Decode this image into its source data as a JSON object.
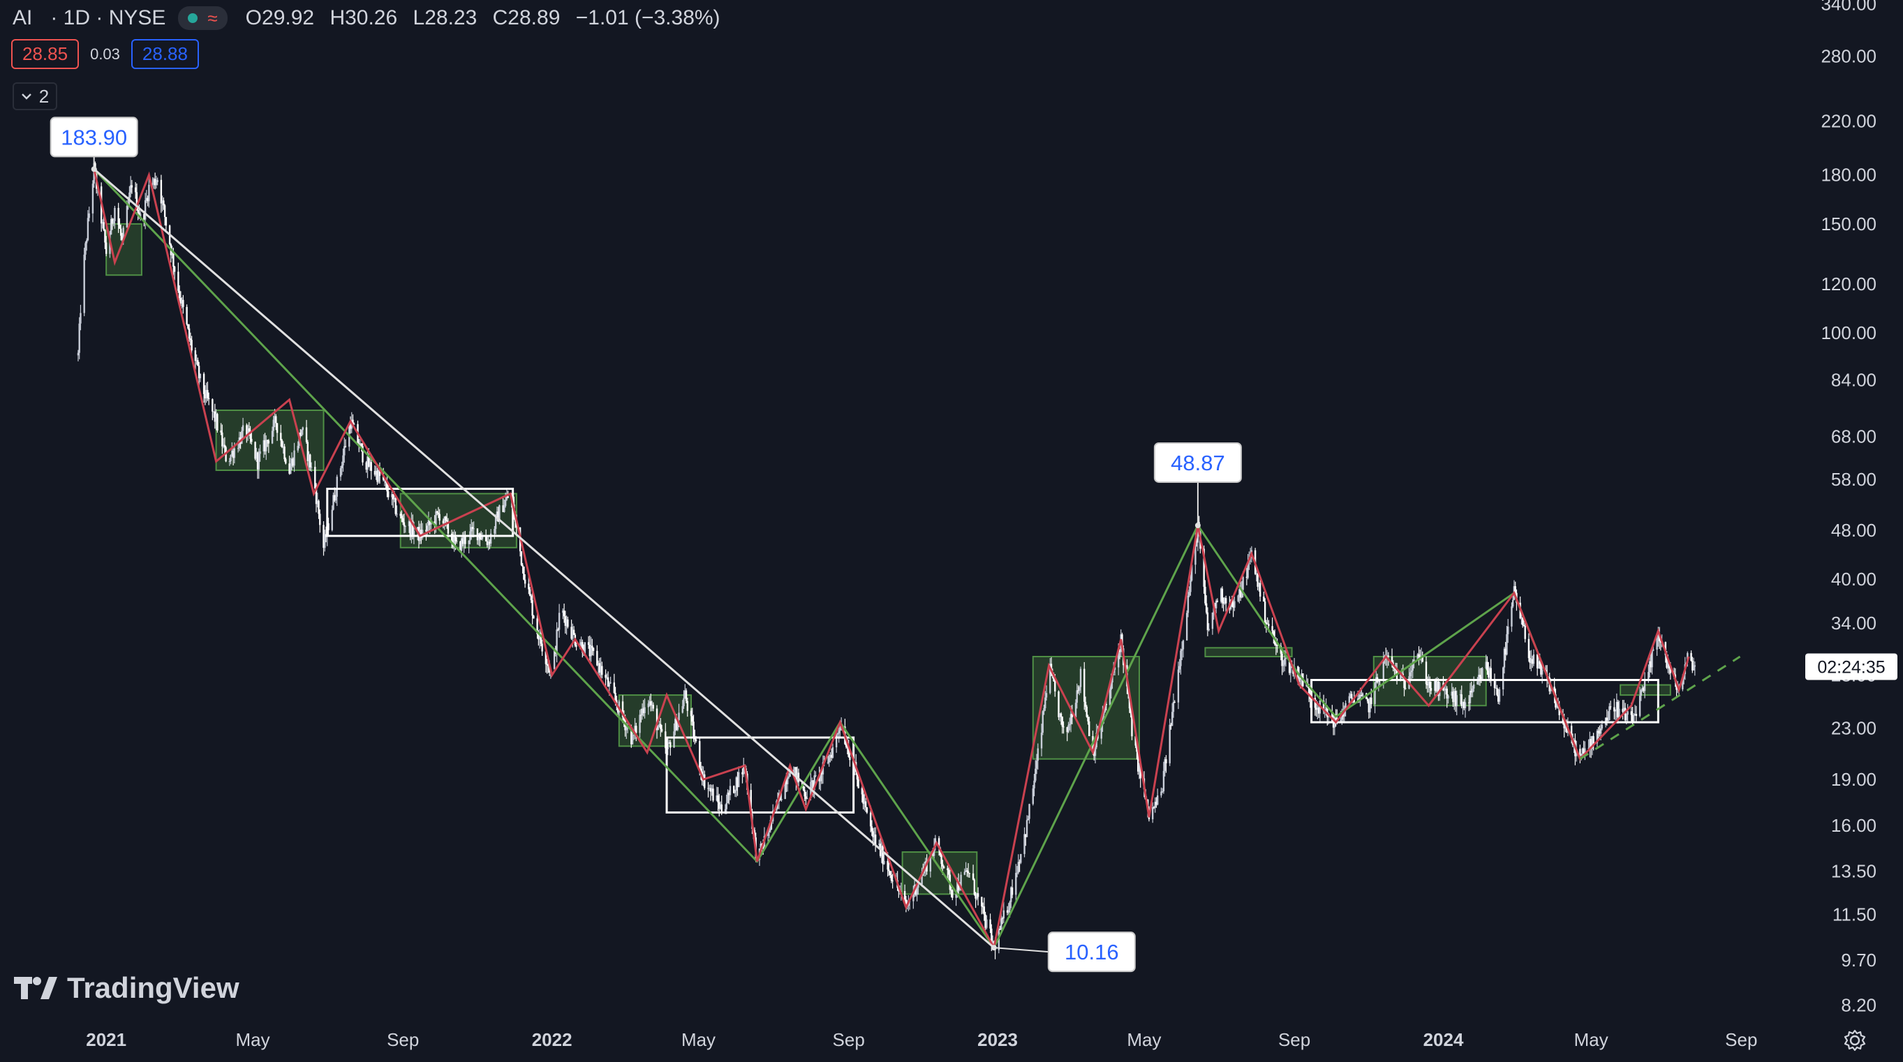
{
  "header": {
    "symbol": "AI",
    "interval_exchange": "· 1D · NYSE",
    "open": "O29.92",
    "high": "H30.26",
    "low": "L28.23",
    "close": "C28.89",
    "change": "−1.01 (−3.38%)",
    "status_icons": [
      "market-open-dot-icon",
      "wave-icon"
    ]
  },
  "quote": {
    "bid": "28.85",
    "spread": "0.03",
    "ask": "28.88"
  },
  "indicators_toggle": {
    "count": "2"
  },
  "branding": {
    "logo_text": "TradingView"
  },
  "chart_data": {
    "type": "candlestick",
    "y_scale": "log",
    "ylim": [
      7.6,
      345
    ],
    "y_ticks": [
      "340.00",
      "280.00",
      "220.00",
      "180.00",
      "150.00",
      "120.00",
      "100.00",
      "84.00",
      "68.00",
      "58.00",
      "48.00",
      "40.00",
      "34.00",
      "28.00",
      "23.00",
      "19.00",
      "16.00",
      "13.50",
      "11.50",
      "9.70",
      "8.20"
    ],
    "x_ticks": [
      "2021",
      "May",
      "Sep",
      "2022",
      "May",
      "Sep",
      "2023",
      "May",
      "Sep",
      "2024",
      "May",
      "Sep"
    ],
    "x_tick_dates": [
      "2021-01-01",
      "2021-05-01",
      "2021-09-01",
      "2022-01-01",
      "2022-05-01",
      "2022-09-01",
      "2023-01-01",
      "2023-05-01",
      "2023-09-01",
      "2024-01-01",
      "2024-05-01",
      "2024-09-01"
    ],
    "x_range": [
      "2020-10-06",
      "2024-10-20"
    ],
    "countdown_label": "02:24:35",
    "price_path": [
      [
        "2020-12-09",
        92
      ],
      [
        "2020-12-12",
        120
      ],
      [
        "2020-12-17",
        150
      ],
      [
        "2020-12-22",
        183.9
      ],
      [
        "2021-01-01",
        135
      ],
      [
        "2021-01-08",
        160
      ],
      [
        "2021-01-14",
        140
      ],
      [
        "2021-01-22",
        175
      ],
      [
        "2021-01-30",
        150
      ],
      [
        "2021-02-05",
        172
      ],
      [
        "2021-02-12",
        178
      ],
      [
        "2021-02-22",
        140
      ],
      [
        "2021-03-01",
        118
      ],
      [
        "2021-03-10",
        98
      ],
      [
        "2021-03-20",
        82
      ],
      [
        "2021-04-01",
        72
      ],
      [
        "2021-04-10",
        62
      ],
      [
        "2021-04-25",
        70
      ],
      [
        "2021-05-05",
        62
      ],
      [
        "2021-05-20",
        72
      ],
      [
        "2021-05-31",
        60
      ],
      [
        "2021-06-10",
        70
      ],
      [
        "2021-06-20",
        58
      ],
      [
        "2021-06-28",
        45
      ],
      [
        "2021-07-08",
        56
      ],
      [
        "2021-07-20",
        72
      ],
      [
        "2021-08-01",
        62
      ],
      [
        "2021-08-15",
        58
      ],
      [
        "2021-08-30",
        50
      ],
      [
        "2021-09-15",
        47
      ],
      [
        "2021-10-01",
        51
      ],
      [
        "2021-10-15",
        45
      ],
      [
        "2021-10-30",
        48
      ],
      [
        "2021-11-10",
        46
      ],
      [
        "2021-11-20",
        52
      ],
      [
        "2021-11-28",
        55
      ],
      [
        "2021-12-08",
        42
      ],
      [
        "2021-12-20",
        33
      ],
      [
        "2022-01-01",
        28
      ],
      [
        "2022-01-08",
        36
      ],
      [
        "2022-01-20",
        32
      ],
      [
        "2022-02-05",
        30
      ],
      [
        "2022-02-20",
        26
      ],
      [
        "2022-03-08",
        22
      ],
      [
        "2022-03-20",
        26
      ],
      [
        "2022-04-05",
        21
      ],
      [
        "2022-04-20",
        26
      ],
      [
        "2022-05-05",
        19
      ],
      [
        "2022-05-20",
        17
      ],
      [
        "2022-06-08",
        20
      ],
      [
        "2022-06-18",
        14.0
      ],
      [
        "2022-07-01",
        16.5
      ],
      [
        "2022-07-15",
        20
      ],
      [
        "2022-07-28",
        18
      ],
      [
        "2022-08-10",
        19.5
      ],
      [
        "2022-08-20",
        21.5
      ],
      [
        "2022-08-25",
        23.5
      ],
      [
        "2022-09-05",
        20
      ],
      [
        "2022-09-20",
        15.5
      ],
      [
        "2022-10-05",
        13.5
      ],
      [
        "2022-10-18",
        11.8
      ],
      [
        "2022-11-01",
        13.5
      ],
      [
        "2022-11-12",
        15
      ],
      [
        "2022-11-25",
        12.5
      ],
      [
        "2022-12-08",
        13.5
      ],
      [
        "2022-12-20",
        11.5
      ],
      [
        "2022-12-29",
        10.16
      ],
      [
        "2023-01-10",
        12
      ],
      [
        "2023-01-25",
        16
      ],
      [
        "2023-02-05",
        22
      ],
      [
        "2023-02-12",
        29
      ],
      [
        "2023-02-25",
        22
      ],
      [
        "2023-03-10",
        28
      ],
      [
        "2023-03-20",
        21
      ],
      [
        "2023-03-31",
        25
      ],
      [
        "2023-04-12",
        32
      ],
      [
        "2023-04-22",
        22
      ],
      [
        "2023-05-05",
        16.5
      ],
      [
        "2023-05-15",
        18
      ],
      [
        "2023-05-26",
        26
      ],
      [
        "2023-06-05",
        36
      ],
      [
        "2023-06-14",
        48.87
      ],
      [
        "2023-06-22",
        33
      ],
      [
        "2023-07-01",
        38
      ],
      [
        "2023-07-15",
        36
      ],
      [
        "2023-07-28",
        44
      ],
      [
        "2023-08-08",
        35
      ],
      [
        "2023-08-20",
        30
      ],
      [
        "2023-09-05",
        28
      ],
      [
        "2023-09-20",
        25
      ],
      [
        "2023-10-05",
        23.5
      ],
      [
        "2023-10-20",
        26
      ],
      [
        "2023-11-01",
        25
      ],
      [
        "2023-11-15",
        30
      ],
      [
        "2023-11-30",
        27
      ],
      [
        "2023-12-10",
        31
      ],
      [
        "2023-12-20",
        27
      ],
      [
        "2024-01-05",
        26
      ],
      [
        "2024-01-20",
        25
      ],
      [
        "2024-02-05",
        29
      ],
      [
        "2024-02-15",
        26
      ],
      [
        "2024-02-28",
        38
      ],
      [
        "2024-03-12",
        30
      ],
      [
        "2024-03-28",
        27
      ],
      [
        "2024-04-10",
        23
      ],
      [
        "2024-04-22",
        20.5
      ],
      [
        "2024-05-05",
        22.5
      ],
      [
        "2024-05-20",
        25
      ],
      [
        "2024-06-03",
        23.5
      ],
      [
        "2024-06-15",
        27
      ],
      [
        "2024-06-25",
        33
      ],
      [
        "2024-07-05",
        28
      ],
      [
        "2024-07-12",
        26.5
      ],
      [
        "2024-07-20",
        30
      ],
      [
        "2024-07-25",
        28.89
      ]
    ],
    "zigzag_minor": [
      [
        "2020-12-22",
        183.9
      ],
      [
        "2021-01-08",
        130
      ],
      [
        "2021-02-05",
        180
      ],
      [
        "2021-04-01",
        62
      ],
      [
        "2021-05-31",
        78
      ],
      [
        "2021-06-20",
        55
      ],
      [
        "2021-07-20",
        72
      ],
      [
        "2021-09-15",
        47
      ],
      [
        "2021-11-28",
        55
      ],
      [
        "2022-01-01",
        28
      ],
      [
        "2022-01-20",
        32
      ],
      [
        "2022-03-20",
        21
      ],
      [
        "2022-04-05",
        26
      ],
      [
        "2022-05-05",
        19
      ],
      [
        "2022-06-08",
        20
      ],
      [
        "2022-06-18",
        14.0
      ],
      [
        "2022-07-15",
        20
      ],
      [
        "2022-07-28",
        17
      ],
      [
        "2022-08-25",
        23.5
      ],
      [
        "2022-10-18",
        11.8
      ],
      [
        "2022-11-12",
        15
      ],
      [
        "2022-12-29",
        10.16
      ],
      [
        "2023-02-12",
        29
      ],
      [
        "2023-03-20",
        21
      ],
      [
        "2023-04-12",
        32
      ],
      [
        "2023-05-05",
        16.5
      ],
      [
        "2023-06-14",
        48.87
      ],
      [
        "2023-07-01",
        33
      ],
      [
        "2023-07-28",
        44
      ],
      [
        "2023-09-05",
        27
      ],
      [
        "2023-10-05",
        23.5
      ],
      [
        "2023-11-15",
        30
      ],
      [
        "2023-12-20",
        25
      ],
      [
        "2024-02-28",
        38
      ],
      [
        "2024-04-22",
        20.5
      ],
      [
        "2024-06-03",
        25
      ],
      [
        "2024-06-25",
        33
      ],
      [
        "2024-07-12",
        26.5
      ],
      [
        "2024-07-20",
        30
      ]
    ],
    "zigzag_major": [
      [
        "2020-12-22",
        183.9
      ],
      [
        "2022-06-18",
        14.0
      ],
      [
        "2022-08-25",
        23.5
      ],
      [
        "2022-12-29",
        10.16
      ],
      [
        "2023-06-14",
        48.87
      ],
      [
        "2023-09-05",
        28
      ],
      [
        "2023-10-05",
        24
      ],
      [
        "2024-02-28",
        38
      ],
      [
        "2024-04-22",
        20.5
      ]
    ],
    "trendline": [
      [
        "2020-12-22",
        183.9
      ],
      [
        "2022-12-29",
        10.16
      ]
    ],
    "dashed_trend": [
      [
        "2024-04-22",
        20.5
      ],
      [
        "2024-08-31",
        30
      ]
    ],
    "pivot_labels": [
      {
        "date": "2020-12-22",
        "price": 183.9,
        "text": "183.90"
      },
      {
        "date": "2023-06-14",
        "price": 48.87,
        "text": "48.87"
      },
      {
        "date": "2022-12-29",
        "price": 10.16,
        "text": "10.16"
      }
    ],
    "green_zones": [
      {
        "from": "2021-01-01",
        "to": "2021-01-30",
        "high": 150,
        "low": 124
      },
      {
        "from": "2021-04-01",
        "to": "2021-06-28",
        "high": 75,
        "low": 60
      },
      {
        "from": "2021-08-30",
        "to": "2021-12-03",
        "high": 55,
        "low": 45
      },
      {
        "from": "2022-02-25",
        "to": "2022-04-25",
        "high": 26,
        "low": 21.5
      },
      {
        "from": "2022-10-15",
        "to": "2022-12-15",
        "high": 14.5,
        "low": 12.4
      },
      {
        "from": "2023-01-30",
        "to": "2023-04-27",
        "high": 30,
        "low": 20.5
      },
      {
        "from": "2023-06-20",
        "to": "2023-08-30",
        "high": 31,
        "low": 30
      },
      {
        "from": "2023-11-05",
        "to": "2024-02-05",
        "high": 30,
        "low": 25
      },
      {
        "from": "2024-05-25",
        "to": "2024-07-05",
        "high": 27,
        "low": 26
      }
    ],
    "white_zones": [
      {
        "from": "2021-07-01",
        "to": "2021-11-30",
        "high": 56,
        "low": 47
      },
      {
        "from": "2022-04-05",
        "to": "2022-09-05",
        "high": 22.2,
        "low": 16.8
      },
      {
        "from": "2023-09-15",
        "to": "2024-06-25",
        "high": 27.5,
        "low": 23.5
      }
    ]
  },
  "colors": {
    "background": "#131722",
    "axis_text": "#d1d4dc",
    "up": "#c8cdd8",
    "down": "#ffffff",
    "zigzag_minor": "#c9414f",
    "zigzag_major": "#5ea34b",
    "trendline": "#e0e0e0",
    "pivot_label_text": "#2962ff",
    "zone_green_fill": "#2c4a2e",
    "zone_green_stroke": "#4f8f45",
    "zone_white_stroke": "#ffffff",
    "bid": "#ef5350",
    "ask": "#2962ff"
  },
  "settings_icon": "gear-icon"
}
